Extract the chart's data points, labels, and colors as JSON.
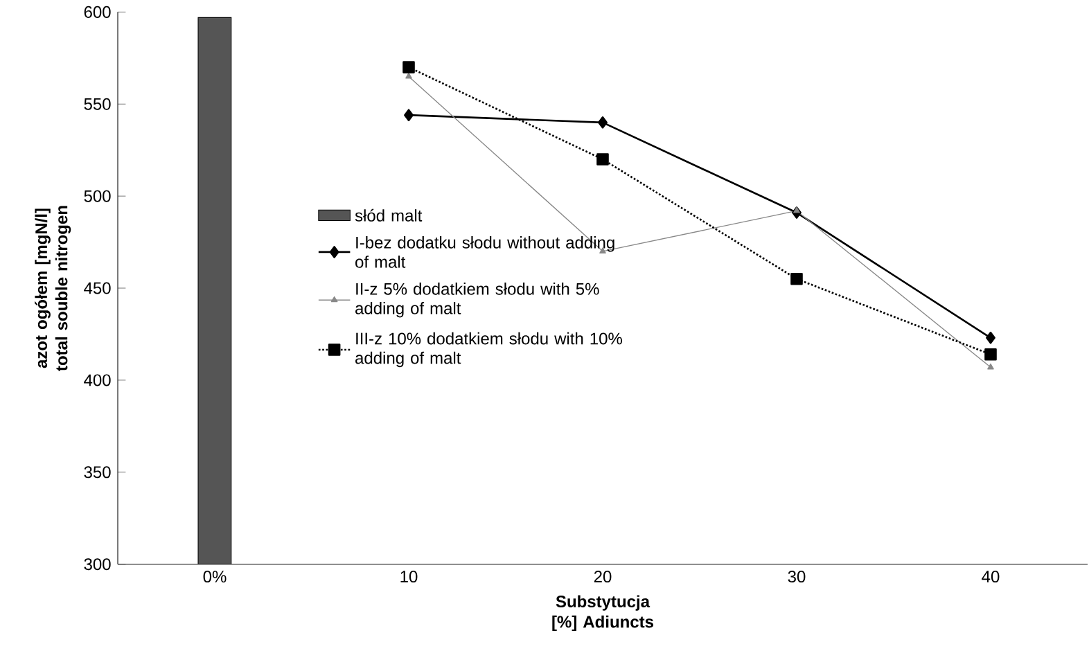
{
  "chart_data": {
    "type": "line",
    "xlabel": "Substytucja [%] Adiuncts",
    "ylabel": "azot ogółem [mgN/l] total souble nitrogen",
    "categories": [
      "0%",
      "10",
      "20",
      "30",
      "40"
    ],
    "ylim": [
      300,
      600
    ],
    "yticks": [
      300,
      350,
      400,
      450,
      500,
      550,
      600
    ],
    "grid": false,
    "legend": "left",
    "series": [
      {
        "name": "słód malt",
        "type": "bar",
        "color": "#555555",
        "values": [
          597,
          null,
          null,
          null,
          null
        ]
      },
      {
        "name": "I-bez dodatku słodu without adding of malt",
        "color": "#000000",
        "marker": "diamond",
        "line_style": "solid",
        "values": [
          null,
          544,
          540,
          491,
          423
        ]
      },
      {
        "name": "II-z 5% dodatkiem słodu with 5% adding of malt",
        "color": "#888888",
        "marker": "triangle",
        "line_style": "solid",
        "values": [
          null,
          565,
          470,
          492,
          407
        ]
      },
      {
        "name": "III-z 10% dodatkiem słodu with 10% adding of malt",
        "color": "#000000",
        "marker": "square",
        "line_style": "dotted",
        "values": [
          null,
          570,
          520,
          455,
          414
        ]
      }
    ]
  }
}
